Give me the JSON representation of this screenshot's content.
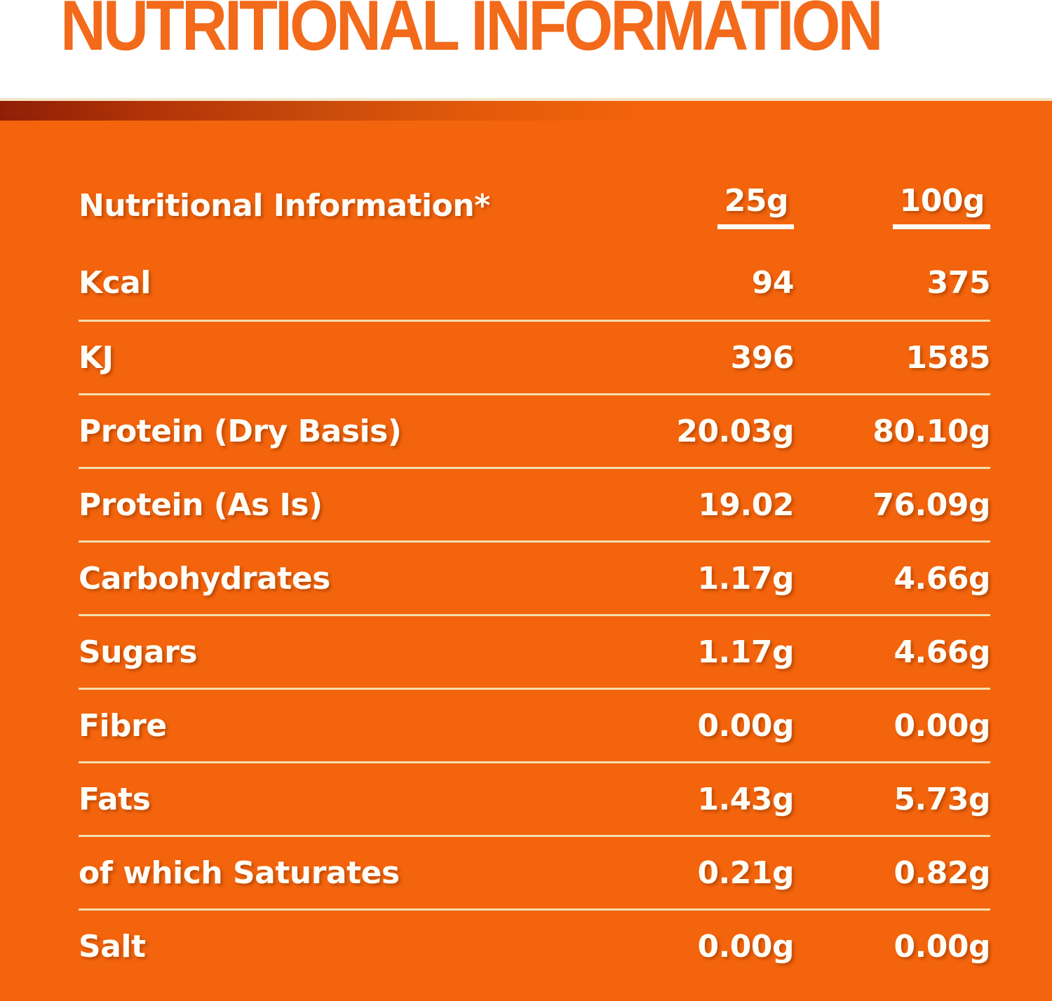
{
  "page": {
    "title": "NUTRITIONAL INFORMATION",
    "colors": {
      "panel_orange": "#f4640c",
      "title_orange": "#f26a1a",
      "gradient_band_dark_red": "#8e1f06",
      "separator_cream": "#f2dfae",
      "text_white": "#fffdf6"
    }
  },
  "table": {
    "header": {
      "label": "Nutritional Information*",
      "col_25g": "25g",
      "col_100g": "100g"
    },
    "rows": [
      {
        "label": "Kcal",
        "v25": "94",
        "v100": "375"
      },
      {
        "label": "KJ",
        "v25": "396",
        "v100": "1585"
      },
      {
        "label": "Protein (Dry Basis)",
        "v25": "20.03g",
        "v100": "80.10g"
      },
      {
        "label": "Protein (As Is)",
        "v25": "19.02",
        "v100": "76.09g"
      },
      {
        "label": "Carbohydrates",
        "v25": "1.17g",
        "v100": "4.66g"
      },
      {
        "label": "Sugars",
        "v25": "1.17g",
        "v100": "4.66g"
      },
      {
        "label": "Fibre",
        "v25": "0.00g",
        "v100": "0.00g"
      },
      {
        "label": "Fats",
        "v25": "1.43g",
        "v100": "5.73g"
      },
      {
        "label": "of which Saturates",
        "v25": "0.21g",
        "v100": "0.82g"
      },
      {
        "label": "Salt",
        "v25": "0.00g",
        "v100": "0.00g"
      }
    ]
  }
}
